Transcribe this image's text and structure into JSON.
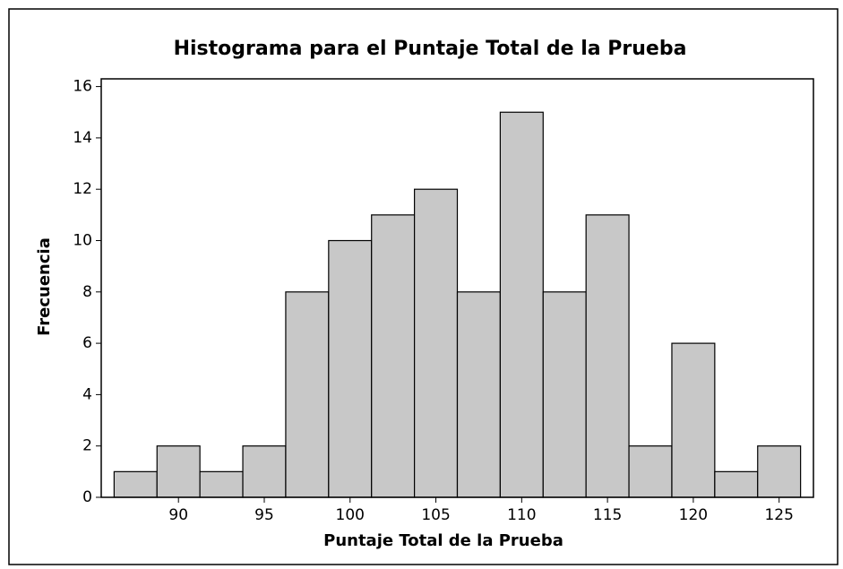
{
  "chart_data": {
    "type": "histogram",
    "title": "Histograma para el Puntaje Total de la Prueba",
    "xlabel": "Puntaje Total de la Prueba",
    "ylabel": "Frecuencia",
    "bins": [
      86.25,
      88.75,
      91.25,
      93.75,
      96.25,
      98.75,
      101.25,
      103.75,
      106.25,
      108.75,
      111.25,
      113.75,
      116.25,
      118.75,
      121.25,
      123.75,
      126.25
    ],
    "counts": [
      1,
      2,
      1,
      2,
      8,
      10,
      11,
      12,
      8,
      15,
      8,
      11,
      2,
      6,
      1,
      2
    ],
    "color": "#c8c8c8",
    "xlim": [
      85.5,
      127
    ],
    "ylim": [
      0,
      16.3
    ],
    "xticks": [
      90,
      95,
      100,
      105,
      110,
      115,
      120,
      125
    ],
    "yticks": [
      0,
      2,
      4,
      6,
      8,
      10,
      12,
      14,
      16
    ]
  }
}
